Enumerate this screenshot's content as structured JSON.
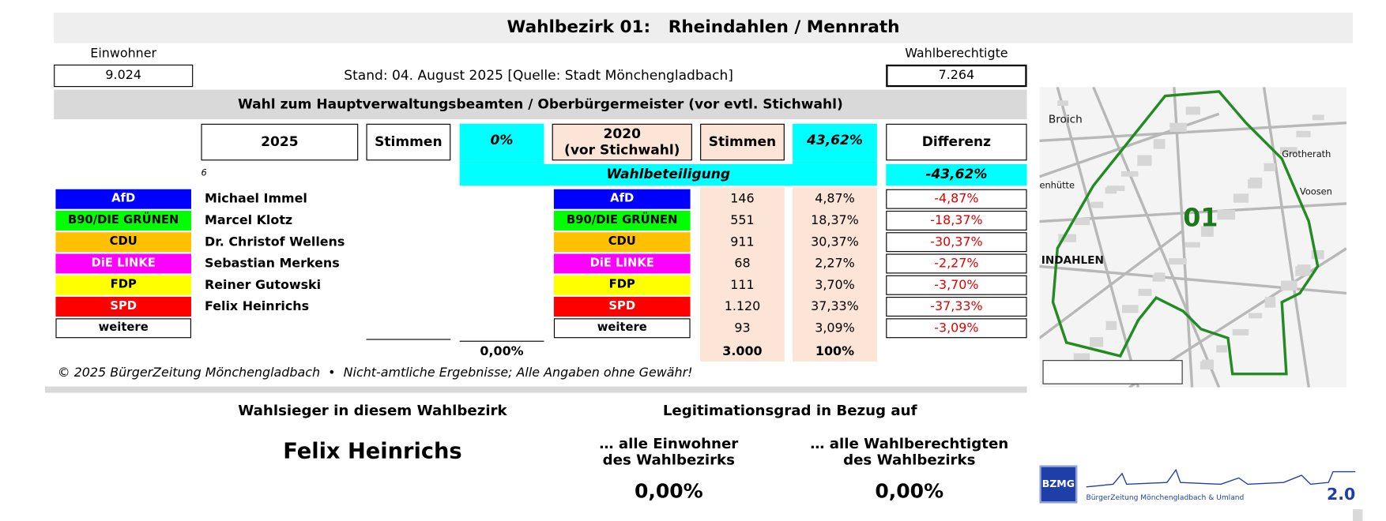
{
  "header": {
    "title": "Wahlbezirk 01:   Rheindahlen / Mennrath",
    "einwohner_label": "Einwohner",
    "einwohner": "9.024",
    "stand": "Stand: 04. August 2025 [Quelle: Stadt Mönchengladbach]",
    "wahlberechtigte_label": "Wahlberechtigte",
    "wahlberechtigte": "7.264",
    "section_title": "Wahl zum Hauptverwaltungsbeamten / Oberbürgermeister (vor evtl. Stichwahl)"
  },
  "table": {
    "columns": [
      "2025",
      "Stimmen",
      "0%",
      "2020\n(vor Stichwahl)",
      "Stimmen",
      "43,62%",
      "Differenz"
    ],
    "note": "6",
    "turnout_label": "Wahlbeteiligung",
    "turnout_diff": "-43,62%",
    "rows": [
      {
        "party": "AfD",
        "color": "#0000ff",
        "text_color": "#ffffff",
        "candidate": "Michael Immel",
        "party_2020": "AfD",
        "votes_2020": "146",
        "share_2020": "4,87%",
        "diff": "-4,87%"
      },
      {
        "party": "B90/DIE GRÜNEN",
        "color": "#00ff00",
        "text_color": "#000000",
        "candidate": "Marcel Klotz",
        "party_2020": "B90/DIE GRÜNEN",
        "votes_2020": "551",
        "share_2020": "18,37%",
        "diff": "-18,37%"
      },
      {
        "party": "CDU",
        "color": "#ffc000",
        "text_color": "#000000",
        "candidate": "Dr. Christof Wellens",
        "party_2020": "CDU",
        "votes_2020": "911",
        "share_2020": "30,37%",
        "diff": "-30,37%"
      },
      {
        "party": "DiE LINKE",
        "color": "#ff00ff",
        "text_color": "#ffffff",
        "candidate": "Sebastian Merkens",
        "party_2020": "DiE LINKE",
        "votes_2020": "68",
        "share_2020": "2,27%",
        "diff": "-2,27%"
      },
      {
        "party": "FDP",
        "color": "#ffff00",
        "text_color": "#000000",
        "candidate": "Reiner Gutowski",
        "party_2020": "FDP",
        "votes_2020": "111",
        "share_2020": "3,70%",
        "diff": "-3,70%"
      },
      {
        "party": "SPD",
        "color": "#ff0000",
        "text_color": "#ffffff",
        "candidate": "Felix Heinrichs",
        "party_2020": "SPD",
        "votes_2020": "1.120",
        "share_2020": "37,33%",
        "diff": "-37,33%"
      },
      {
        "party": "weitere",
        "color": "#ffffff",
        "text_color": "#000000",
        "candidate": null,
        "party_2020": "weitere",
        "votes_2020": "93",
        "share_2020": "3,09%",
        "diff": "-3,09%"
      }
    ],
    "totals": {
      "share_2025": "0,00%",
      "votes_2020": "3.000",
      "share_2020": "100%"
    }
  },
  "footer": "© 2025 BürgerZeitung Mönchengladbach  •  Nicht-amtliche Ergebnisse; Alle Angaben ohne Gewähr!",
  "winner": {
    "label": "Wahlsieger in diesem Wahlbezirk",
    "name": "Felix Heinrichs"
  },
  "legitimation": {
    "label": "Legitimationsgrad in Bezug auf",
    "residents_label": "… alle Einwohner\ndes Wahlbezirks",
    "residents_value": "0,00%",
    "voters_label": "… alle Wahlberechtigten\ndes Wahlbezirks",
    "voters_value": "0,00%"
  },
  "map": {
    "district": "01",
    "places": [
      "Broich",
      "Grotherath",
      "Voosen",
      "enhütte",
      "INDAHLEN"
    ]
  },
  "logo": {
    "badge": "BZMG",
    "name": "BürgerZeitung Mönchengladbach & Umland",
    "version": "2.0"
  }
}
